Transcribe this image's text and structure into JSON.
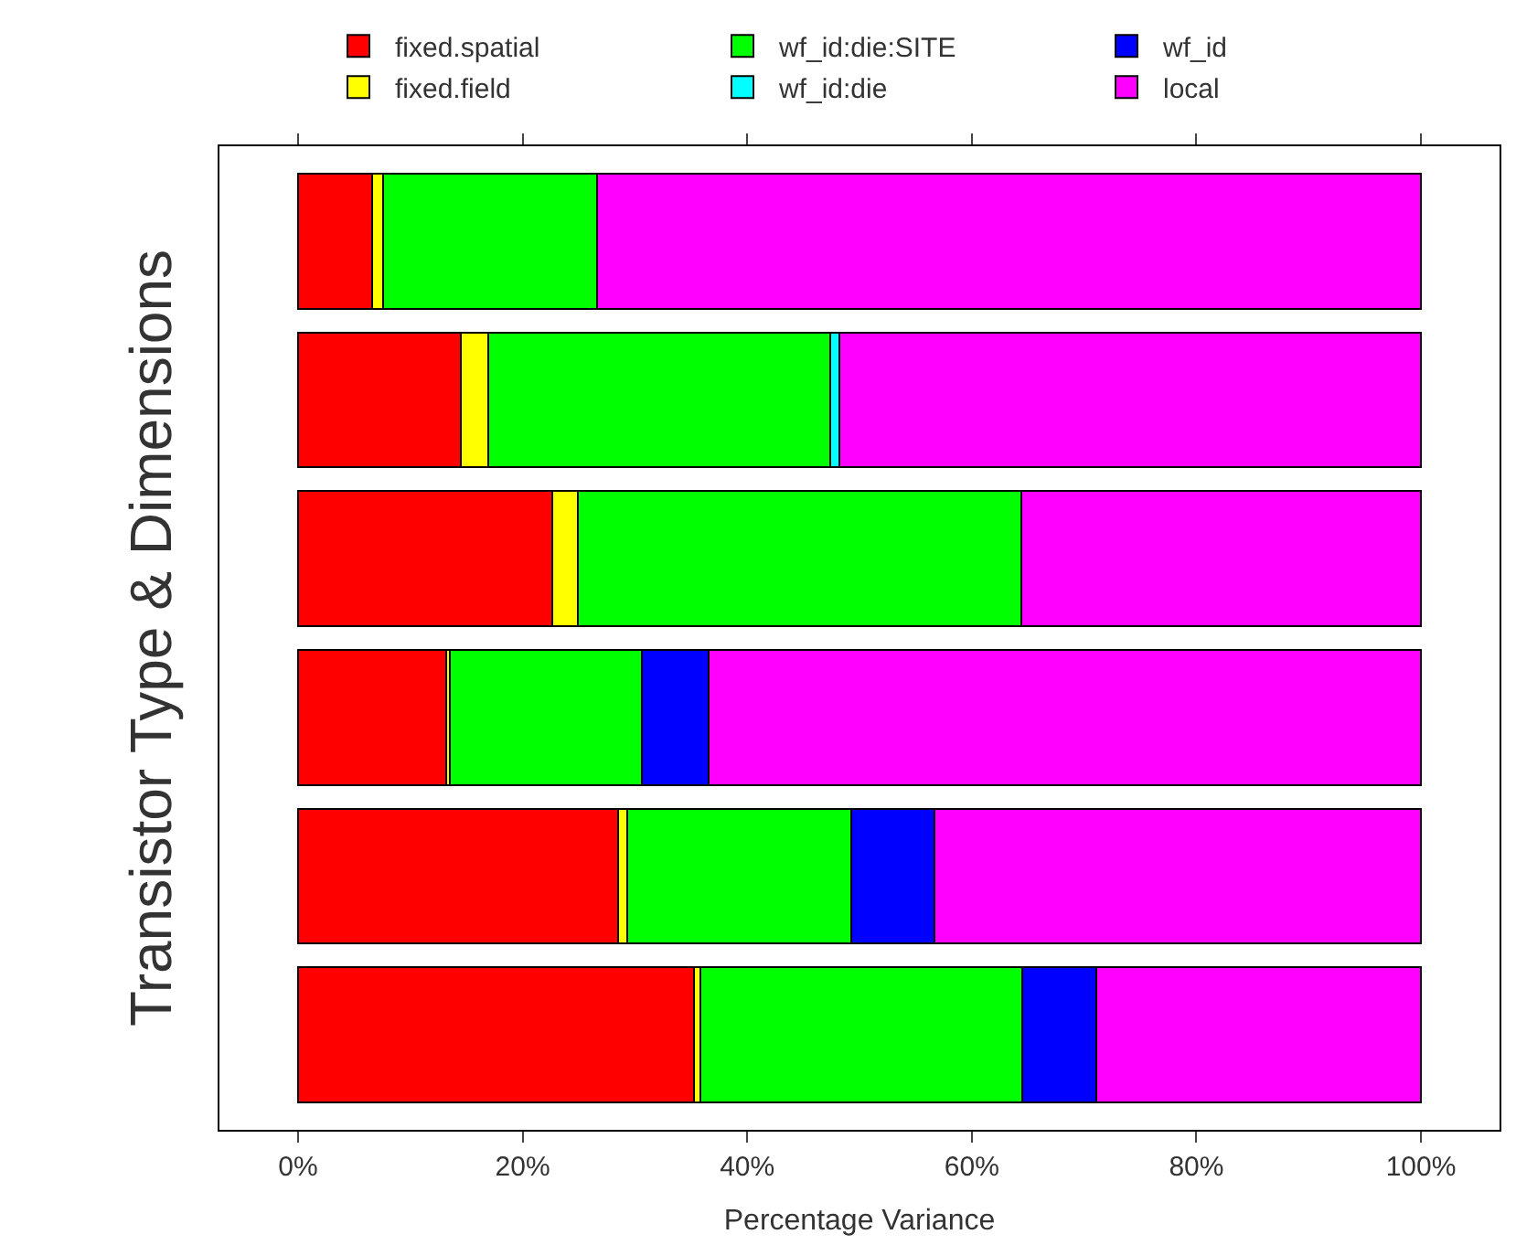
{
  "chart_data": {
    "type": "bar",
    "orientation": "horizontal",
    "stacked": true,
    "ylabel": "Transistor Type & Dimensions",
    "xlabel": "Percentage Variance",
    "categories": [
      null,
      null,
      null,
      null,
      null,
      null
    ],
    "series": [
      {
        "name": "fixed.spatial",
        "color": "#ff0000",
        "values": [
          6.6,
          14.5,
          22.6,
          13.2,
          28.5,
          35.3
        ]
      },
      {
        "name": "fixed.field",
        "color": "#ffff00",
        "values": [
          1.0,
          2.4,
          2.3,
          0.3,
          0.8,
          0.5
        ]
      },
      {
        "name": "wf_id:die:SITE",
        "color": "#00ff00",
        "values": [
          19.0,
          30.5,
          39.5,
          17.1,
          20.0,
          28.7
        ]
      },
      {
        "name": "wf_id:die",
        "color": "#00ffff",
        "values": [
          0,
          0.8,
          0,
          0,
          0,
          0
        ]
      },
      {
        "name": "wf_id",
        "color": "#0000ff",
        "values": [
          0,
          0,
          0,
          6.0,
          7.4,
          6.6
        ]
      },
      {
        "name": "local",
        "color": "#ff00ff",
        "values": [
          73.4,
          51.8,
          35.6,
          63.4,
          43.3,
          28.9
        ]
      }
    ],
    "xlim": [
      -7,
      107
    ],
    "xticks": [
      {
        "value": 0,
        "label": "0%"
      },
      {
        "value": 20,
        "label": "20%"
      },
      {
        "value": 40,
        "label": "40%"
      },
      {
        "value": 60,
        "label": "60%"
      },
      {
        "value": 80,
        "label": "80%"
      },
      {
        "value": 100,
        "label": "100%"
      }
    ],
    "tick_labels": "x",
    "legend": "top"
  }
}
